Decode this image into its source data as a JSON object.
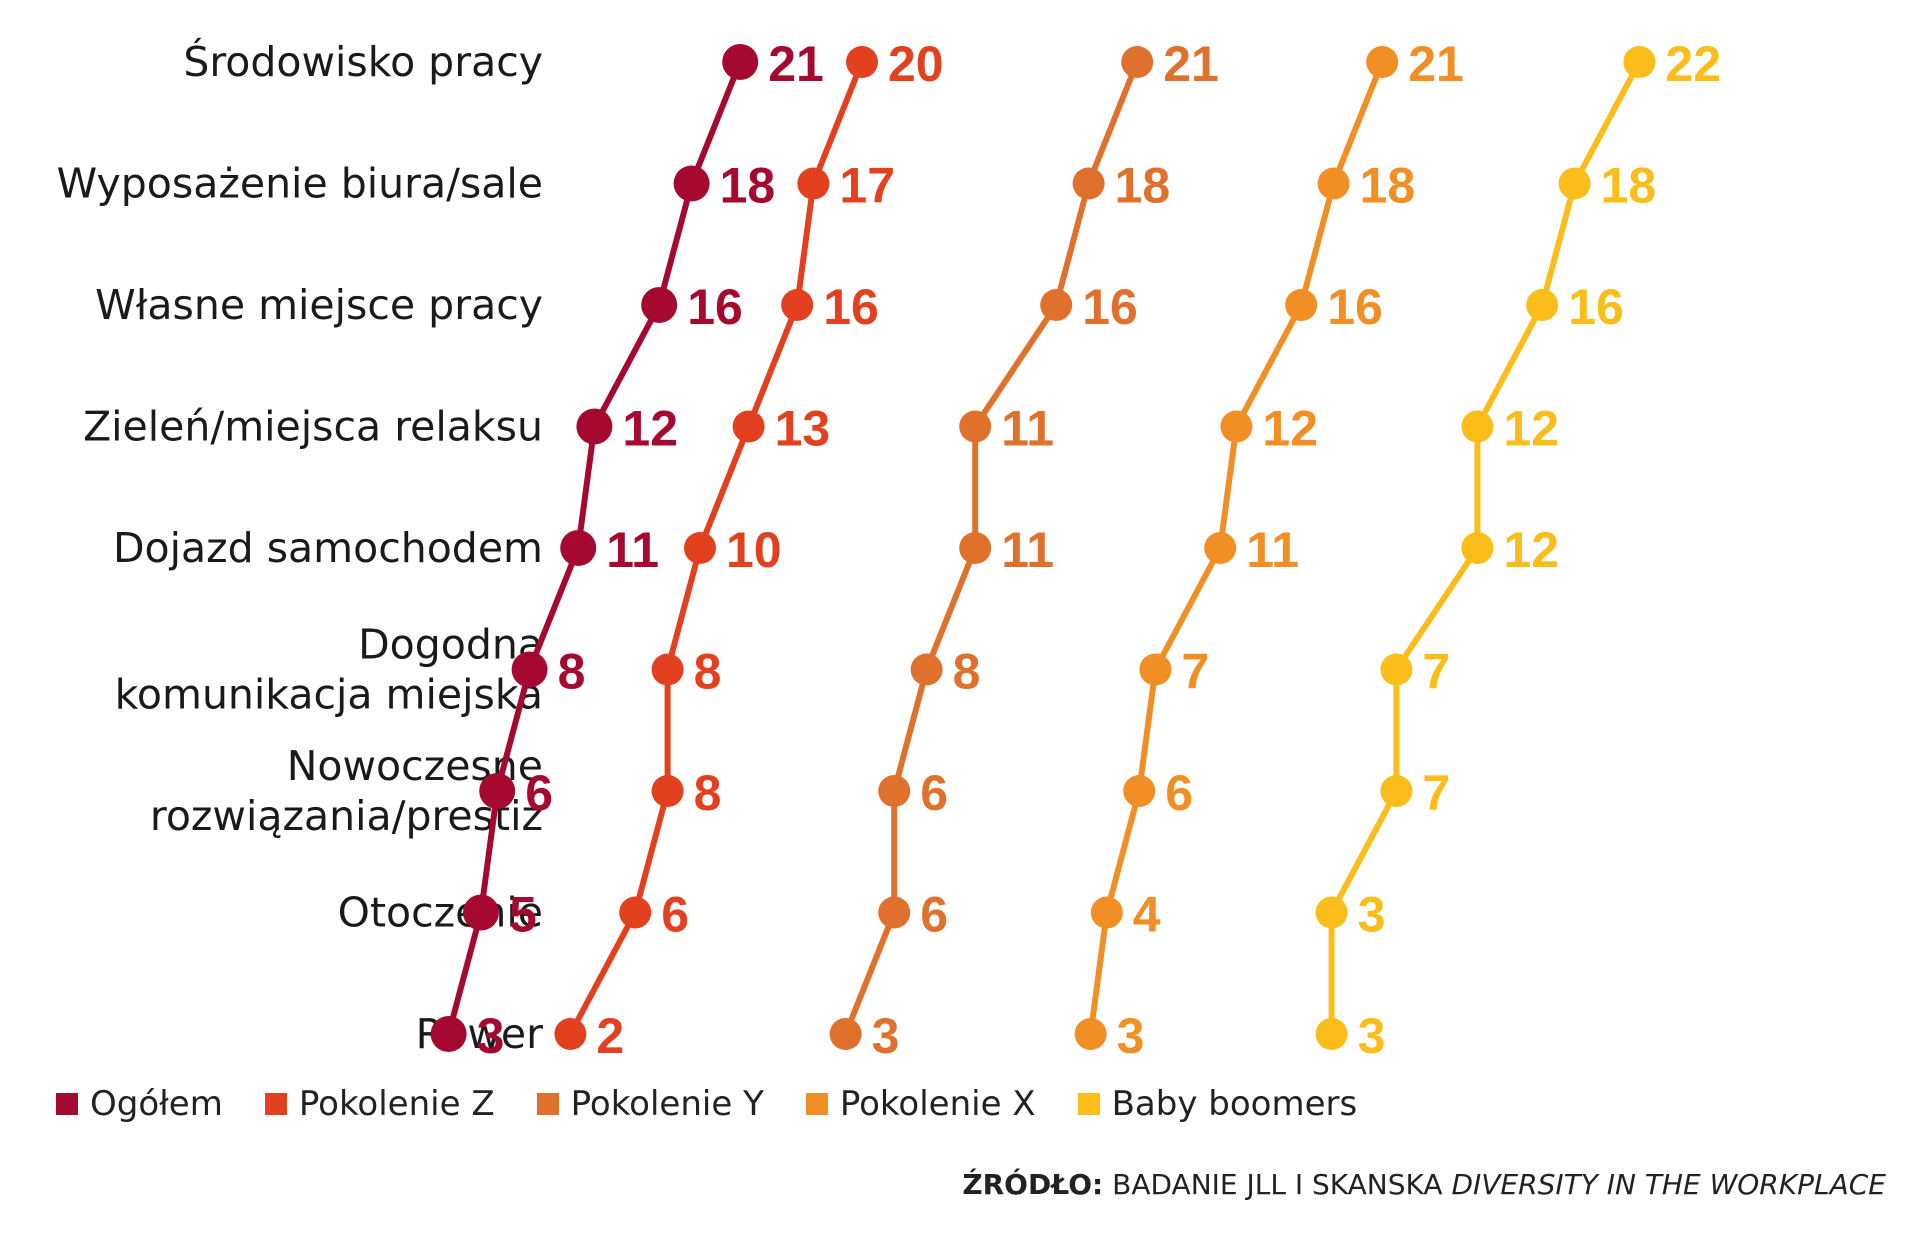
{
  "chart_data": {
    "type": "line",
    "categories": [
      "Środowisko pracy",
      "Wyposażenie biura/sale",
      "Własne miejsce pracy",
      "Zieleń/miejsca relaksu",
      "Dojazd samochodem",
      "Dogodna komunikacja miejska",
      "Nowoczesne rozwiązania/prestiż",
      "Otoczenie",
      "Rower"
    ],
    "category_lines": [
      [
        "Środowisko pracy"
      ],
      [
        "Wyposażenie biura/sale"
      ],
      [
        "Własne miejsce pracy"
      ],
      [
        "Zieleń/miejsca relaksu"
      ],
      [
        "Dojazd samochodem"
      ],
      [
        "Dogodna",
        "komunikacja miejska"
      ],
      [
        "Nowoczesne",
        "rozwiązania/prestiż"
      ],
      [
        "Otoczenie"
      ],
      [
        "Rower"
      ]
    ],
    "series": [
      {
        "name": "Ogółem",
        "color": "#a6092f",
        "values": [
          21,
          18,
          16,
          12,
          11,
          8,
          6,
          5,
          3
        ]
      },
      {
        "name": "Pokolenie Z",
        "color": "#e2401e",
        "values": [
          20,
          17,
          16,
          13,
          10,
          8,
          8,
          6,
          2
        ]
      },
      {
        "name": "Pokolenie Y",
        "color": "#df712c",
        "values": [
          21,
          18,
          16,
          11,
          11,
          8,
          6,
          6,
          3
        ]
      },
      {
        "name": "Pokolenie X",
        "color": "#f18e24",
        "values": [
          21,
          18,
          16,
          12,
          11,
          7,
          6,
          4,
          3
        ]
      },
      {
        "name": "Baby boomers",
        "color": "#fbbd1a",
        "values": [
          22,
          18,
          16,
          12,
          12,
          7,
          7,
          3,
          3
        ]
      }
    ],
    "title": "",
    "legend_position": "bottom-left",
    "grid": false
  },
  "source": {
    "label": "ŹRÓDŁO:",
    "text": "BADANIE JLL I SKANSKA",
    "title": "DIVERSITY IN THE WORKPLACE"
  }
}
